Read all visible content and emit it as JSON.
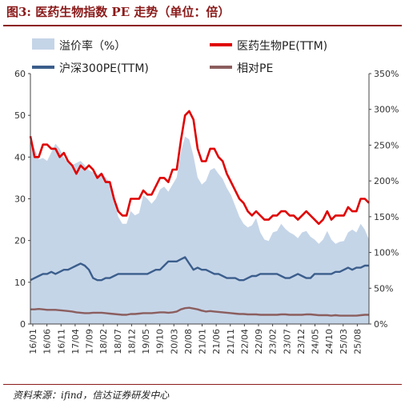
{
  "title": "图3: 医药生物指数 PE 走势（单位：倍）",
  "source": "资料来源：ifind，信达证券研发中心",
  "chart_data": {
    "type": "line",
    "left_axis": {
      "min": 0,
      "max": 60,
      "ticks": [
        "0",
        "10",
        "20",
        "30",
        "40",
        "50",
        "60"
      ]
    },
    "right_axis": {
      "min": 0,
      "max": 350,
      "ticks": [
        "0%",
        "50%",
        "100%",
        "150%",
        "200%",
        "250%",
        "300%",
        "350%"
      ]
    },
    "x_ticks": [
      "16/01",
      "16/06",
      "16/11",
      "17/04",
      "17/09",
      "18/02",
      "18/07",
      "18/12",
      "19/05",
      "19/10",
      "20/03",
      "20/08",
      "21/01",
      "21/06",
      "21/11",
      "22/04",
      "22/09",
      "23/02",
      "23/07",
      "23/12",
      "24/05",
      "24/10",
      "25/03",
      "25/08"
    ],
    "legend_position": "top",
    "series": [
      {
        "name": "溢价率（%）",
        "axis": "right",
        "kind": "area",
        "color": "#C5D5E8",
        "values": [
          260,
          245,
          230,
          232,
          228,
          240,
          252,
          245,
          233,
          225,
          222,
          225,
          228,
          222,
          215,
          212,
          208,
          212,
          205,
          198,
          175,
          150,
          140,
          140,
          158,
          152,
          155,
          180,
          175,
          168,
          175,
          188,
          192,
          185,
          195,
          205,
          240,
          262,
          258,
          235,
          205,
          195,
          200,
          215,
          218,
          210,
          203,
          190,
          180,
          165,
          150,
          140,
          135,
          138,
          148,
          128,
          118,
          116,
          128,
          130,
          140,
          133,
          128,
          125,
          120,
          128,
          130,
          122,
          118,
          112,
          118,
          130,
          118,
          112,
          115,
          116,
          128,
          132,
          128,
          140,
          132,
          118
        ]
      },
      {
        "name": "医药生物PE(TTM)",
        "axis": "left",
        "kind": "line",
        "color": "#E00000",
        "values": [
          45,
          40,
          40,
          43,
          43,
          42,
          42,
          40,
          41,
          39,
          38,
          36,
          38,
          37,
          38,
          37,
          35,
          36,
          34,
          34,
          30,
          27,
          26,
          26,
          30,
          30,
          30,
          32,
          31,
          31,
          33,
          35,
          35,
          34,
          37,
          37,
          44,
          50,
          51,
          49,
          42,
          39,
          39,
          42,
          42,
          40,
          39,
          36,
          34,
          32,
          30,
          29,
          27,
          26,
          27,
          26,
          25,
          25,
          26,
          26,
          27,
          27,
          26,
          26,
          25,
          26,
          27,
          26,
          25,
          24,
          25,
          27,
          25,
          26,
          26,
          26,
          28,
          27,
          27,
          30,
          30,
          29
        ]
      },
      {
        "name": "沪深300PE(TTM)",
        "axis": "left",
        "kind": "line",
        "color": "#3B5E8C",
        "values": [
          10.5,
          11,
          11.5,
          12,
          12,
          12.5,
          12,
          12.5,
          13,
          13,
          13.5,
          14,
          14.5,
          14,
          13,
          11,
          10.5,
          10.5,
          11,
          11,
          11.5,
          12,
          12,
          12,
          12,
          12,
          12,
          12,
          12,
          12.5,
          13,
          13,
          14,
          15,
          15,
          15,
          15.5,
          16,
          14.5,
          13,
          13.5,
          13,
          13,
          12.5,
          12,
          12,
          11.5,
          11,
          11,
          11,
          10.5,
          10.5,
          11,
          11.5,
          11.5,
          12,
          12,
          12,
          12,
          12,
          11.5,
          11,
          11,
          11.5,
          12,
          11.5,
          11,
          11,
          12,
          12,
          12,
          12,
          12,
          12.5,
          12.5,
          13,
          13.5,
          13,
          13.5,
          13.5,
          14,
          14
        ]
      },
      {
        "name": "相对PE",
        "axis": "left",
        "kind": "line",
        "color": "#8B5E5E",
        "values": [
          3.5,
          3.5,
          3.6,
          3.5,
          3.4,
          3.4,
          3.4,
          3.3,
          3.2,
          3.1,
          3.0,
          2.8,
          2.7,
          2.6,
          2.6,
          2.7,
          2.7,
          2.7,
          2.6,
          2.5,
          2.4,
          2.3,
          2.2,
          2.2,
          2.4,
          2.4,
          2.5,
          2.6,
          2.6,
          2.6,
          2.7,
          2.8,
          2.8,
          2.7,
          2.8,
          3.0,
          3.5,
          3.8,
          3.9,
          3.7,
          3.5,
          3.2,
          3.0,
          3.1,
          3.0,
          2.9,
          2.8,
          2.7,
          2.6,
          2.5,
          2.4,
          2.4,
          2.3,
          2.3,
          2.3,
          2.2,
          2.2,
          2.2,
          2.2,
          2.2,
          2.3,
          2.3,
          2.2,
          2.2,
          2.2,
          2.2,
          2.3,
          2.3,
          2.2,
          2.1,
          2.1,
          2.1,
          2.0,
          2.1,
          2.0,
          2.0,
          2.0,
          2.0,
          2.0,
          2.1,
          2.2,
          2.2
        ]
      }
    ]
  }
}
